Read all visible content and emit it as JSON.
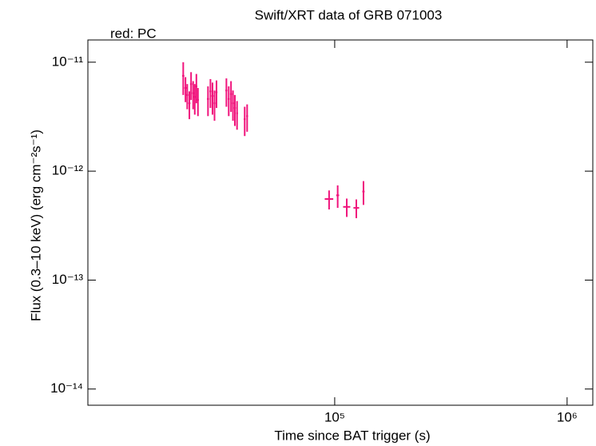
{
  "chart_data": {
    "type": "errorbar",
    "title": "Swift/XRT data of GRB 071003",
    "subtitle": "red: PC",
    "x_label": "Time since BAT trigger (s)",
    "y_label": "Flux (0.3–10 keV) (erg cm⁻²s⁻¹)",
    "log_x": true,
    "log_y": true,
    "xlim": [
      8670,
      1290000
    ],
    "ylim": [
      7.1e-15,
      1.6e-11
    ],
    "xticks": [
      {
        "value": 100000,
        "label": "10⁵"
      },
      {
        "value": 1000000,
        "label": "10⁶"
      }
    ],
    "yticks": [
      {
        "value": 1e-14,
        "label": "10⁻¹⁴"
      },
      {
        "value": 1e-13,
        "label": "10⁻¹³"
      },
      {
        "value": 1e-12,
        "label": "10⁻¹²"
      },
      {
        "value": 1e-11,
        "label": "10⁻¹¹"
      }
    ],
    "series": [
      {
        "color": "#f0147c",
        "x": [
          22300,
          22800,
          23200,
          23700,
          24100,
          24600,
          25000,
          25400,
          25800,
          28500,
          29200,
          29800,
          30400,
          31000,
          34200,
          35000,
          35800,
          36500,
          37200,
          38000,
          41000,
          42000,
          94600,
          103000,
          112700,
          123900,
          133000
        ],
        "xerr": [
          250,
          250,
          250,
          250,
          250,
          250,
          250,
          250,
          250,
          300,
          300,
          300,
          300,
          300,
          350,
          350,
          350,
          350,
          350,
          350,
          400,
          400,
          4000,
          1500,
          4000,
          3500,
          1500
        ],
        "values": [
          7.5e-12,
          5.8e-12,
          5e-12,
          4.2e-12,
          6.3e-12,
          5.2e-12,
          4.8e-12,
          6e-12,
          4.5e-12,
          4.6e-12,
          5.4e-12,
          4.9e-12,
          4.2e-12,
          5.3e-12,
          5.5e-12,
          4.6e-12,
          5.1e-12,
          4.2e-12,
          3.8e-12,
          3.4e-12,
          3e-12,
          3.2e-12,
          5.55e-13,
          6e-13,
          4.7e-13,
          4.6e-13,
          6.5e-13
        ],
        "yerr": [
          2.5e-12,
          1.5e-12,
          1.3e-12,
          1.2e-12,
          1.8e-12,
          1.5e-12,
          1.5e-12,
          1.8e-12,
          1.3e-12,
          1.4e-12,
          1.6e-12,
          1.6e-12,
          1.3e-12,
          1.5e-12,
          1.6e-12,
          1.4e-12,
          1.6e-12,
          1.3e-12,
          1.2e-12,
          1e-12,
          9e-13,
          9e-13,
          1.1e-13,
          1.4e-13,
          9e-14,
          9e-14,
          1.6e-13
        ]
      }
    ]
  }
}
